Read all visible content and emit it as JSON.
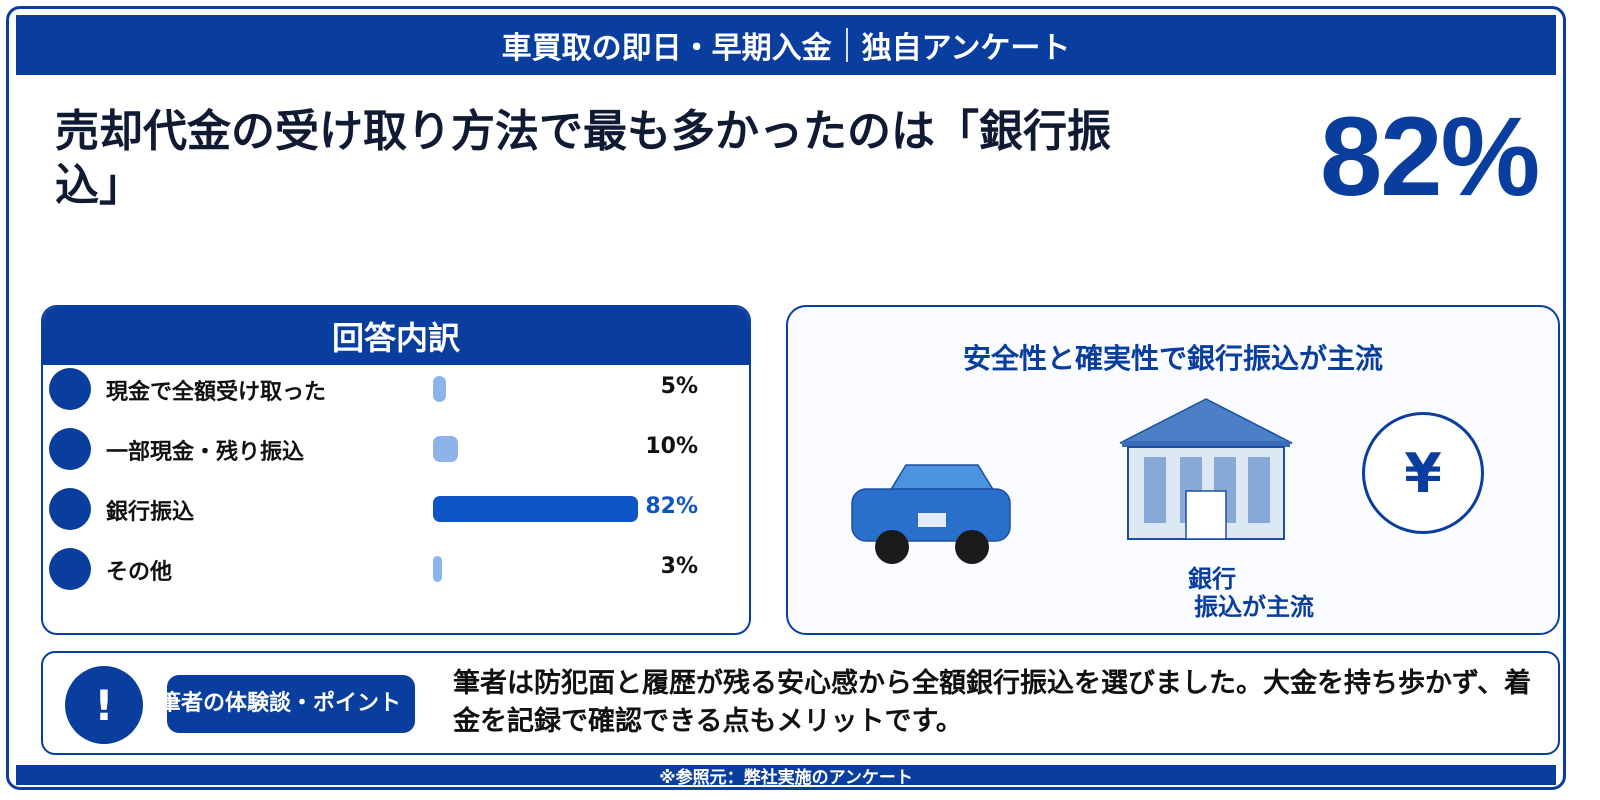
{
  "header": {
    "title_main": "車買取の即日・早期入金",
    "title_sub": "独自アンケート"
  },
  "headline": "売却代金の受け取り方法で最も多かったのは「銀行振込」",
  "highlight": {
    "percent": "82%"
  },
  "breakdown": {
    "title": "回答内訳"
  },
  "chart_data": {
    "type": "bar",
    "title": "回答内訳",
    "categories": [
      "現金で全額受け取った",
      "一部現金・残り振込",
      "銀行振込",
      "その他"
    ],
    "values": [
      5,
      10,
      82,
      3
    ],
    "value_labels": [
      "5%",
      "10%",
      "82%",
      "3%"
    ],
    "unit": "%",
    "highlight_index": 2,
    "colors": {
      "bar": "#8db4ea",
      "highlight": "#0d55c6",
      "accent": "#0a3e9e"
    }
  },
  "illustration": {
    "title": "安全性と確実性で銀行振込が主流",
    "yen_symbol": "¥",
    "caption_line1": "銀行",
    "caption_line2": "振込が主流",
    "icons": [
      "car-icon",
      "bank-icon",
      "yen-icon"
    ]
  },
  "point": {
    "icon": "!",
    "label": "筆者の体験談・ポイント",
    "text": "筆者は防犯面と履歴が残る安心感から全額銀行振込を選びました。大金を持ち歩かず、着金を記録で確認できる点もメリットです。"
  },
  "footer": {
    "source": "※参照元：弊社実施のアンケート"
  },
  "colors": {
    "primary": "#0a3e9e",
    "text": "#101a33"
  }
}
